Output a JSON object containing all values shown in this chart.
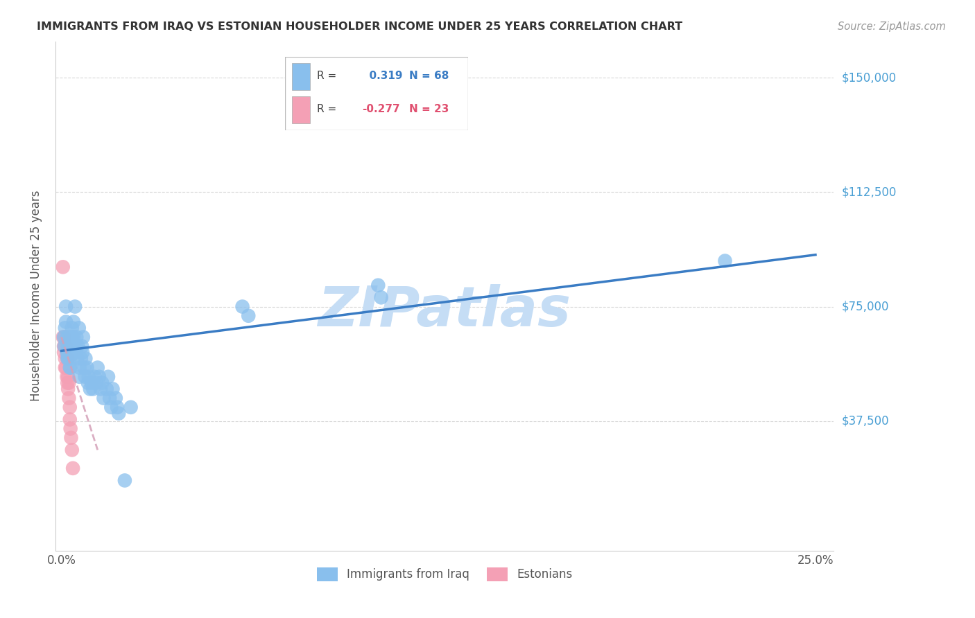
{
  "title": "IMMIGRANTS FROM IRAQ VS ESTONIAN HOUSEHOLDER INCOME UNDER 25 YEARS CORRELATION CHART",
  "source": "Source: ZipAtlas.com",
  "ylabel": "Householder Income Under 25 years",
  "ylabel_values": [
    37500,
    75000,
    112500,
    150000
  ],
  "ylabel_labels": [
    "$37,500",
    "$75,000",
    "$112,500",
    "$150,000"
  ],
  "xlim": [
    0.0,
    0.25
  ],
  "ylim": [
    0,
    160000
  ],
  "blue_R": 0.319,
  "blue_N": 68,
  "pink_R": -0.277,
  "pink_N": 23,
  "blue_color": "#89bfed",
  "pink_color": "#f4a0b5",
  "blue_line_color": "#3a7cc4",
  "pink_line_color": "#d4a0b8",
  "watermark_color": "#c5ddf5",
  "grid_color": "#d8d8d8",
  "blue_x": [
    0.0008,
    0.001,
    0.0012,
    0.0015,
    0.0015,
    0.0018,
    0.0018,
    0.002,
    0.002,
    0.0022,
    0.0022,
    0.0025,
    0.0025,
    0.0028,
    0.0028,
    0.003,
    0.003,
    0.0032,
    0.0035,
    0.0035,
    0.0038,
    0.004,
    0.004,
    0.0042,
    0.0045,
    0.0048,
    0.0048,
    0.005,
    0.0052,
    0.0055,
    0.0058,
    0.006,
    0.006,
    0.0065,
    0.0068,
    0.007,
    0.0072,
    0.0075,
    0.0078,
    0.008,
    0.0085,
    0.0088,
    0.009,
    0.0095,
    0.01,
    0.0105,
    0.011,
    0.0115,
    0.012,
    0.0125,
    0.013,
    0.0135,
    0.014,
    0.015,
    0.0155,
    0.016,
    0.0165,
    0.017,
    0.018,
    0.0185,
    0.019,
    0.021,
    0.023,
    0.06,
    0.062,
    0.105,
    0.106,
    0.22
  ],
  "blue_y": [
    65000,
    62000,
    68000,
    75000,
    70000,
    65000,
    60000,
    58000,
    62000,
    60000,
    58000,
    65000,
    62000,
    58000,
    55000,
    62000,
    55000,
    63000,
    68000,
    65000,
    60000,
    70000,
    65000,
    62000,
    75000,
    62000,
    60000,
    65000,
    58000,
    62000,
    68000,
    55000,
    52000,
    58000,
    62000,
    60000,
    65000,
    55000,
    52000,
    58000,
    55000,
    50000,
    52000,
    48000,
    50000,
    48000,
    52000,
    50000,
    55000,
    52000,
    48000,
    50000,
    45000,
    48000,
    52000,
    45000,
    42000,
    48000,
    45000,
    42000,
    40000,
    18000,
    42000,
    75000,
    72000,
    82000,
    78000,
    90000
  ],
  "pink_x": [
    0.0005,
    0.0005,
    0.0008,
    0.0008,
    0.001,
    0.001,
    0.0012,
    0.0012,
    0.0015,
    0.0015,
    0.0018,
    0.002,
    0.002,
    0.0022,
    0.0022,
    0.0025,
    0.0025,
    0.0028,
    0.0028,
    0.003,
    0.0032,
    0.0035,
    0.0038
  ],
  "pink_y": [
    88000,
    65000,
    62000,
    60000,
    65000,
    62000,
    58000,
    55000,
    62000,
    55000,
    52000,
    58000,
    50000,
    52000,
    48000,
    50000,
    45000,
    42000,
    38000,
    35000,
    32000,
    28000,
    22000
  ],
  "blue_line_x0": 0.0,
  "blue_line_y0": 60500,
  "blue_line_x1": 0.25,
  "blue_line_y1": 92000,
  "pink_line_x0": 0.0,
  "pink_line_y0": 65000,
  "pink_line_x1": 0.012,
  "pink_line_y1": 28000
}
